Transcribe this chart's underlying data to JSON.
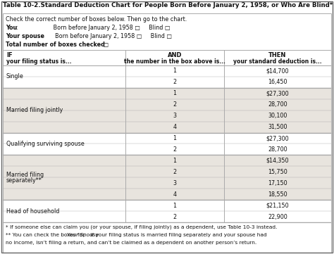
{
  "title": "Table 10-2.Standard Deduction Chart for People Born Before January 2, 1958, or Who Are Blind*",
  "col_headers": [
    "IF\nyour filing status is...",
    "AND\nthe number in the box above is...",
    "THEN\nyour standard deduction is..."
  ],
  "rows": [
    [
      "Single",
      "1",
      "$14,700"
    ],
    [
      "",
      "2",
      "16,450"
    ],
    [
      "Married filing jointly",
      "1",
      "$27,300"
    ],
    [
      "",
      "2",
      "28,700"
    ],
    [
      "",
      "3",
      "30,100"
    ],
    [
      "",
      "4",
      "31,500"
    ],
    [
      "Qualifying surviving spouse",
      "1",
      "$27,300"
    ],
    [
      "",
      "2",
      "28,700"
    ],
    [
      "Married filing\nseparately**",
      "1",
      "$14,350"
    ],
    [
      "",
      "2",
      "15,750"
    ],
    [
      "",
      "3",
      "17,150"
    ],
    [
      "",
      "4",
      "18,550"
    ],
    [
      "Head of household",
      "1",
      "$21,150"
    ],
    [
      "",
      "2",
      "22,900"
    ]
  ],
  "group_info": [
    [
      0,
      2,
      "Single"
    ],
    [
      2,
      4,
      "Married filing jointly"
    ],
    [
      6,
      2,
      "Qualifying surviving spouse"
    ],
    [
      8,
      4,
      "Married filing\nseparately**"
    ],
    [
      12,
      2,
      "Head of household"
    ]
  ],
  "footnote1": "* If someone else can claim you (or your spouse, if filing jointly) as a dependent, use Table 10-3 instead.",
  "footnote2a": "** You can check the boxes for ",
  "footnote2b": "Your Spouse",
  "footnote2c": " if your filing status is married filing separately and your spouse had",
  "footnote3": "no income, isn’t filing a return, and can’t be claimed as a dependent on another person’s return.",
  "bg_color": "#f0ede8",
  "white": "#ffffff",
  "gray_row": "#e8e4de",
  "border": "#aaaaaa",
  "text": "#111111"
}
